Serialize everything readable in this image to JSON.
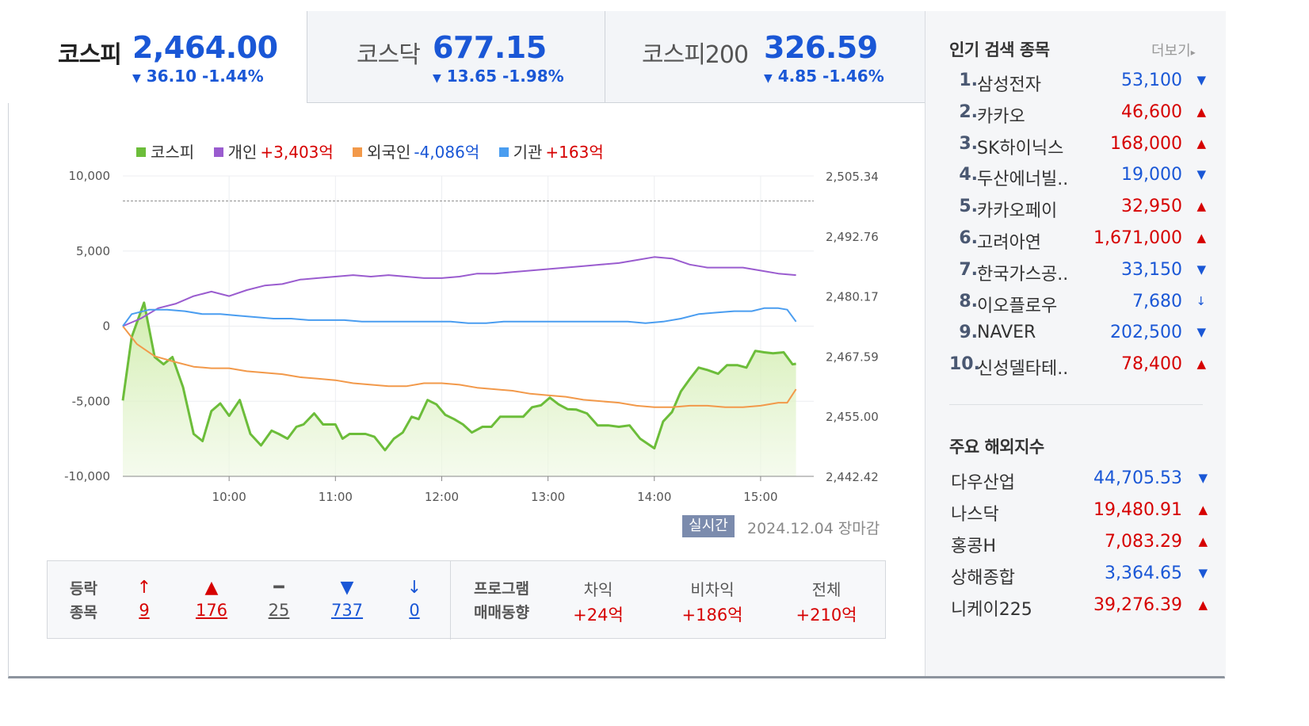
{
  "tabs": [
    {
      "name": "코스피",
      "value": "2,464.00",
      "change": "36.10 -1.44%"
    },
    {
      "name": "코스닥",
      "value": "677.15",
      "change": "13.65 -1.98%"
    },
    {
      "name": "코스피200",
      "value": "326.59",
      "change": "4.85 -1.46%"
    }
  ],
  "legend": [
    {
      "label": "코스피",
      "value": "",
      "color": "#6cbd3a"
    },
    {
      "label": "개인",
      "value": "+3,403억",
      "color": "#9a5ccf",
      "value_color": "#d60000"
    },
    {
      "label": "외국인",
      "value": "-4,086억",
      "color": "#f2994a",
      "value_color": "#1a57d6"
    },
    {
      "label": "기관",
      "value": "+163억",
      "color": "#4a9df0",
      "value_color": "#d60000"
    }
  ],
  "chart_data": {
    "type": "line",
    "x_ticks": [
      "10:00",
      "11:00",
      "12:00",
      "13:00",
      "14:00",
      "15:00"
    ],
    "y_left_ticks": [
      "10,000",
      "5,000",
      "0",
      "-5,000",
      "-10,000"
    ],
    "y_left_lim": [
      -10000,
      10000
    ],
    "y_right_ticks": [
      "2,505.34",
      "2,492.76",
      "2,480.17",
      "2,467.59",
      "2,455.00",
      "2,442.42"
    ],
    "y_right_lim": [
      2442.42,
      2505.34
    ],
    "prev_close_line": 2500.1,
    "x_range_minutes": [
      "09:00",
      "15:30"
    ],
    "series": [
      {
        "name": "코스피",
        "axis": "right",
        "color": "#6cbd3a",
        "area": true,
        "points": [
          [
            0,
            2458.3
          ],
          [
            5,
            2471.6
          ],
          [
            12,
            2478.8
          ],
          [
            18,
            2467.4
          ],
          [
            23,
            2465.9
          ],
          [
            28,
            2467.4
          ],
          [
            34,
            2461.1
          ],
          [
            40,
            2451.3
          ],
          [
            45,
            2449.8
          ],
          [
            50,
            2456.1
          ],
          [
            55,
            2457.7
          ],
          [
            60,
            2455.1
          ],
          [
            66,
            2458.4
          ],
          [
            72,
            2451.3
          ],
          [
            78,
            2448.9
          ],
          [
            84,
            2452.0
          ],
          [
            88,
            2451.3
          ],
          [
            93,
            2450.3
          ],
          [
            98,
            2452.8
          ],
          [
            102,
            2453.3
          ],
          [
            108,
            2455.6
          ],
          [
            113,
            2453.3
          ],
          [
            120,
            2453.3
          ],
          [
            124,
            2450.3
          ],
          [
            128,
            2451.3
          ],
          [
            132,
            2451.3
          ],
          [
            137,
            2451.3
          ],
          [
            142,
            2450.7
          ],
          [
            148,
            2447.9
          ],
          [
            153,
            2450.3
          ],
          [
            158,
            2451.6
          ],
          [
            163,
            2454.9
          ],
          [
            167,
            2454.4
          ],
          [
            172,
            2458.4
          ],
          [
            177,
            2457.5
          ],
          [
            182,
            2455.3
          ],
          [
            187,
            2454.4
          ],
          [
            192,
            2453.3
          ],
          [
            197,
            2451.6
          ],
          [
            203,
            2452.8
          ],
          [
            208,
            2452.8
          ],
          [
            213,
            2454.9
          ],
          [
            218,
            2454.9
          ],
          [
            226,
            2454.9
          ],
          [
            231,
            2456.9
          ],
          [
            236,
            2457.3
          ],
          [
            241,
            2458.9
          ],
          [
            246,
            2457.5
          ],
          [
            251,
            2456.5
          ],
          [
            256,
            2456.4
          ],
          [
            262,
            2455.6
          ],
          [
            268,
            2453.1
          ],
          [
            274,
            2453.1
          ],
          [
            280,
            2452.8
          ],
          [
            286,
            2453.1
          ],
          [
            292,
            2450.3
          ],
          [
            300,
            2448.3
          ],
          [
            305,
            2453.9
          ],
          [
            310,
            2455.9
          ],
          [
            315,
            2460.2
          ],
          [
            320,
            2462.8
          ],
          [
            325,
            2465.2
          ],
          [
            330,
            2464.7
          ],
          [
            336,
            2463.9
          ],
          [
            341,
            2465.7
          ],
          [
            347,
            2465.7
          ],
          [
            352,
            2465.2
          ],
          [
            357,
            2468.7
          ],
          [
            362,
            2468.4
          ],
          [
            367,
            2468.2
          ],
          [
            373,
            2468.4
          ],
          [
            378,
            2465.9
          ],
          [
            380,
            2466.0
          ]
        ]
      },
      {
        "name": "개인",
        "axis": "left",
        "color": "#9a5ccf",
        "points": [
          [
            0,
            0
          ],
          [
            10,
            500
          ],
          [
            20,
            1200
          ],
          [
            30,
            1500
          ],
          [
            40,
            2000
          ],
          [
            50,
            2300
          ],
          [
            60,
            2000
          ],
          [
            70,
            2400
          ],
          [
            80,
            2700
          ],
          [
            90,
            2800
          ],
          [
            100,
            3100
          ],
          [
            110,
            3200
          ],
          [
            120,
            3300
          ],
          [
            130,
            3400
          ],
          [
            140,
            3300
          ],
          [
            150,
            3400
          ],
          [
            160,
            3300
          ],
          [
            170,
            3200
          ],
          [
            180,
            3200
          ],
          [
            190,
            3300
          ],
          [
            200,
            3500
          ],
          [
            210,
            3500
          ],
          [
            220,
            3600
          ],
          [
            230,
            3700
          ],
          [
            240,
            3800
          ],
          [
            250,
            3900
          ],
          [
            260,
            4000
          ],
          [
            270,
            4100
          ],
          [
            280,
            4200
          ],
          [
            290,
            4400
          ],
          [
            300,
            4600
          ],
          [
            310,
            4500
          ],
          [
            320,
            4100
          ],
          [
            330,
            3900
          ],
          [
            340,
            3900
          ],
          [
            350,
            3900
          ],
          [
            360,
            3700
          ],
          [
            370,
            3500
          ],
          [
            380,
            3400
          ]
        ]
      },
      {
        "name": "외국인",
        "axis": "left",
        "color": "#f2994a",
        "points": [
          [
            0,
            0
          ],
          [
            8,
            -1200
          ],
          [
            18,
            -2000
          ],
          [
            30,
            -2400
          ],
          [
            40,
            -2700
          ],
          [
            50,
            -2800
          ],
          [
            60,
            -2800
          ],
          [
            70,
            -3000
          ],
          [
            80,
            -3100
          ],
          [
            90,
            -3200
          ],
          [
            100,
            -3400
          ],
          [
            110,
            -3500
          ],
          [
            120,
            -3600
          ],
          [
            130,
            -3800
          ],
          [
            140,
            -3900
          ],
          [
            150,
            -4000
          ],
          [
            160,
            -4000
          ],
          [
            170,
            -3800
          ],
          [
            180,
            -3800
          ],
          [
            190,
            -3900
          ],
          [
            200,
            -4100
          ],
          [
            210,
            -4200
          ],
          [
            220,
            -4300
          ],
          [
            230,
            -4500
          ],
          [
            240,
            -4600
          ],
          [
            250,
            -4700
          ],
          [
            260,
            -4900
          ],
          [
            270,
            -5000
          ],
          [
            280,
            -5100
          ],
          [
            290,
            -5300
          ],
          [
            300,
            -5400
          ],
          [
            310,
            -5400
          ],
          [
            320,
            -5300
          ],
          [
            330,
            -5300
          ],
          [
            340,
            -5400
          ],
          [
            350,
            -5400
          ],
          [
            360,
            -5300
          ],
          [
            370,
            -5100
          ],
          [
            375,
            -5100
          ],
          [
            380,
            -4200
          ]
        ]
      },
      {
        "name": "기관",
        "axis": "left",
        "color": "#4a9df0",
        "points": [
          [
            0,
            0
          ],
          [
            5,
            800
          ],
          [
            15,
            1100
          ],
          [
            25,
            1100
          ],
          [
            35,
            1000
          ],
          [
            45,
            800
          ],
          [
            55,
            800
          ],
          [
            65,
            700
          ],
          [
            75,
            600
          ],
          [
            85,
            500
          ],
          [
            95,
            500
          ],
          [
            105,
            400
          ],
          [
            115,
            400
          ],
          [
            125,
            400
          ],
          [
            135,
            300
          ],
          [
            145,
            300
          ],
          [
            155,
            300
          ],
          [
            165,
            300
          ],
          [
            175,
            300
          ],
          [
            185,
            300
          ],
          [
            195,
            200
          ],
          [
            205,
            200
          ],
          [
            215,
            300
          ],
          [
            225,
            300
          ],
          [
            235,
            300
          ],
          [
            245,
            300
          ],
          [
            255,
            300
          ],
          [
            265,
            300
          ],
          [
            275,
            300
          ],
          [
            285,
            300
          ],
          [
            295,
            200
          ],
          [
            305,
            300
          ],
          [
            315,
            500
          ],
          [
            325,
            800
          ],
          [
            335,
            900
          ],
          [
            345,
            1000
          ],
          [
            355,
            1000
          ],
          [
            362,
            1200
          ],
          [
            370,
            1200
          ],
          [
            375,
            1100
          ],
          [
            380,
            300
          ]
        ]
      }
    ]
  },
  "realtime": {
    "badge": "실시간",
    "date": "2024.12.04",
    "status": "장마감"
  },
  "updown": {
    "label_line1": "등락",
    "label_line2": "종목",
    "items": [
      {
        "icon": "↑",
        "count": "9",
        "color": "#d60000",
        "name": "upper-limit"
      },
      {
        "icon": "▲",
        "count": "176",
        "color": "#d60000",
        "name": "rise"
      },
      {
        "icon": "━",
        "count": "25",
        "color": "#555555",
        "name": "unchanged"
      },
      {
        "icon": "▼",
        "count": "737",
        "color": "#1a57d6",
        "name": "fall"
      },
      {
        "icon": "↓",
        "count": "0",
        "color": "#1a57d6",
        "name": "lower-limit"
      }
    ]
  },
  "program": {
    "label_line1": "프로그램",
    "label_line2": "매매동향",
    "items": [
      {
        "header": "차익",
        "value": "+24억"
      },
      {
        "header": "비차익",
        "value": "+186억"
      },
      {
        "header": "전체",
        "value": "+210억"
      }
    ]
  },
  "sidebar": {
    "popular_title": "인기 검색 종목",
    "more_label": "더보기",
    "popular": [
      {
        "rank": "1.",
        "name": "삼성전자",
        "price": "53,100",
        "dir": "down",
        "icon": "▼"
      },
      {
        "rank": "2.",
        "name": "카카오",
        "price": "46,600",
        "dir": "up",
        "icon": "▲"
      },
      {
        "rank": "3.",
        "name": "SK하이닉스",
        "price": "168,000",
        "dir": "up",
        "icon": "▲"
      },
      {
        "rank": "4.",
        "name": "두산에너빌..",
        "price": "19,000",
        "dir": "down",
        "icon": "▼"
      },
      {
        "rank": "5.",
        "name": "카카오페이",
        "price": "32,950",
        "dir": "up",
        "icon": "▲"
      },
      {
        "rank": "6.",
        "name": "고려아연",
        "price": "1,671,000",
        "dir": "up",
        "icon": "▲"
      },
      {
        "rank": "7.",
        "name": "한국가스공..",
        "price": "33,150",
        "dir": "down",
        "icon": "▼"
      },
      {
        "rank": "8.",
        "name": "이오플로우",
        "price": "7,680",
        "dir": "down",
        "icon": "↓"
      },
      {
        "rank": "9.",
        "name": "NAVER",
        "price": "202,500",
        "dir": "down",
        "icon": "▼"
      },
      {
        "rank": "10.",
        "name": "신성델타테..",
        "price": "78,400",
        "dir": "up",
        "icon": "▲"
      }
    ],
    "overseas_title": "주요 해외지수",
    "overseas": [
      {
        "name": "다우산업",
        "price": "44,705.53",
        "dir": "down",
        "icon": "▼"
      },
      {
        "name": "나스닥",
        "price": "19,480.91",
        "dir": "up",
        "icon": "▲"
      },
      {
        "name": "홍콩H",
        "price": "7,083.29",
        "dir": "up",
        "icon": "▲"
      },
      {
        "name": "상해종합",
        "price": "3,364.65",
        "dir": "down",
        "icon": "▼"
      },
      {
        "name": "니케이225",
        "price": "39,276.39",
        "dir": "up",
        "icon": "▲"
      }
    ]
  }
}
